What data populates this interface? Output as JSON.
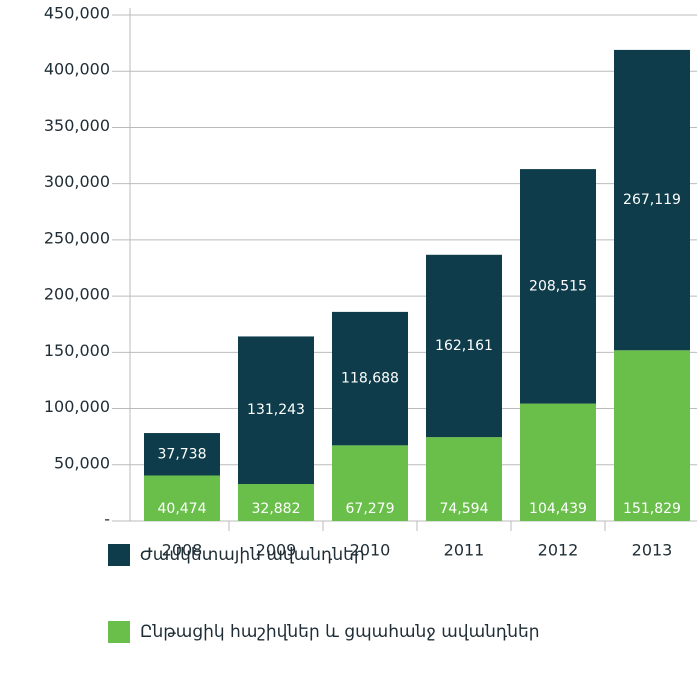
{
  "chart_data": {
    "type": "stacked-bar",
    "categories": [
      "2008",
      "2009",
      "2010",
      "2011",
      "2012",
      "2013"
    ],
    "series": [
      {
        "name": "Ընթացիկ հաշիվներ և ցպահանջ ավանդներ",
        "color": "#6abf4b",
        "values": [
          40474,
          32882,
          67279,
          74594,
          104439,
          151829
        ],
        "value_labels": [
          "40,474",
          "32,882",
          "67,279",
          "74,594",
          "104,439",
          "151,829"
        ]
      },
      {
        "name": "Ժամկետային ավանդներ",
        "color": "#0e3c4a",
        "values": [
          37738,
          131243,
          118688,
          162161,
          208515,
          267119
        ],
        "value_labels": [
          "37,738",
          "131,243",
          "118,688",
          "162,161",
          "208,515",
          "267,119"
        ]
      }
    ],
    "ylim": [
      0,
      450000
    ],
    "yticks": [
      {
        "value": 0,
        "label": "-"
      },
      {
        "value": 50000,
        "label": "50,000"
      },
      {
        "value": 100000,
        "label": "100,000"
      },
      {
        "value": 150000,
        "label": "150,000"
      },
      {
        "value": 200000,
        "label": "200,000"
      },
      {
        "value": 250000,
        "label": "250,000"
      },
      {
        "value": 300000,
        "label": "300,000"
      },
      {
        "value": 350000,
        "label": "350,000"
      },
      {
        "value": 400000,
        "label": "400,000"
      },
      {
        "value": 450000,
        "label": "450,000"
      }
    ],
    "grid": true
  }
}
